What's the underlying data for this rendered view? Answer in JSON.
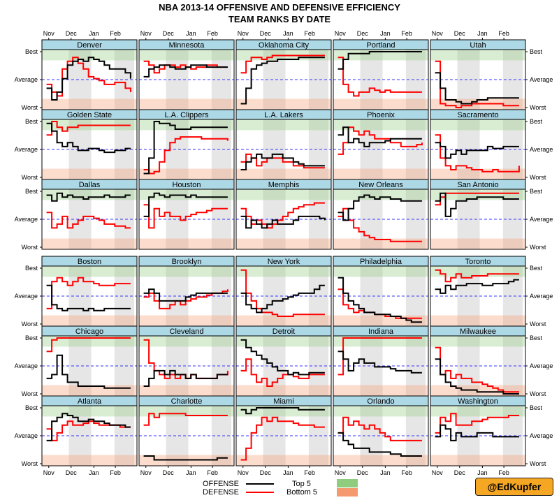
{
  "page": {
    "title_line1": "NBA 2013-14 OFFENSIVE AND DEFENSIVE EFFICIENCY",
    "title_line2": "TEAM RANKS BY DATE"
  },
  "legend": {
    "offense": "OFFENSE",
    "defense": "DEFENSE",
    "top5": "Top 5",
    "bottom5": "Bottom 5"
  },
  "badge": "@EdKupfer",
  "colors": {
    "offense": "#000000",
    "defense": "#ff0000",
    "top5": "#8fcc7e",
    "bottom5": "#f59a6e",
    "strip": "#add8e6",
    "month_shade": "#e6e6e6",
    "average_line": "#3333ff"
  },
  "chart_data": {
    "type": "line",
    "x": [
      "Nov",
      "Dec",
      "Jan",
      "Feb"
    ],
    "y_ticks": [
      "Best",
      "Average",
      "Worst"
    ],
    "ylim": [
      30,
      1
    ],
    "grid": false,
    "legend_position": "bottom",
    "panels": [
      {
        "team": "Denver",
        "offense": [
          20,
          26,
          22,
          15,
          8,
          6,
          5,
          6,
          4,
          5,
          6,
          8,
          10,
          10,
          10,
          12,
          15
        ],
        "defense": [
          18,
          22,
          24,
          10,
          6,
          4,
          7,
          10,
          14,
          15,
          16,
          18,
          18,
          17,
          17,
          20,
          22
        ]
      },
      {
        "team": "Minnesota",
        "offense": [
          14,
          10,
          9,
          8,
          8,
          9,
          10,
          10,
          9,
          8,
          8,
          8,
          9,
          9,
          9,
          9,
          9
        ],
        "defense": [
          6,
          8,
          12,
          10,
          8,
          8,
          9,
          8,
          9,
          10,
          9,
          9,
          8,
          8,
          9,
          9,
          9
        ]
      },
      {
        "team": "Oklahoma City",
        "offense": [
          28,
          20,
          10,
          8,
          7,
          6,
          6,
          5,
          5,
          5,
          5,
          4,
          4,
          4,
          4,
          4,
          4
        ],
        "defense": [
          12,
          6,
          4,
          4,
          5,
          4,
          3,
          3,
          3,
          3,
          3,
          3,
          3,
          3,
          3,
          3,
          3
        ]
      },
      {
        "team": "Portland",
        "offense": [
          10,
          5,
          2,
          2,
          2,
          2,
          1,
          1,
          1,
          1,
          1,
          1,
          1,
          1,
          1,
          1,
          1
        ],
        "defense": [
          4,
          18,
          22,
          24,
          22,
          22,
          20,
          21,
          22,
          21,
          22,
          22,
          22,
          22,
          22,
          22,
          22
        ]
      },
      {
        "team": "Utah",
        "offense": [
          12,
          20,
          26,
          26,
          27,
          28,
          28,
          27,
          26,
          26,
          25,
          25,
          25,
          25,
          25,
          25,
          25
        ],
        "defense": [
          6,
          28,
          29,
          29,
          30,
          29,
          29,
          28,
          28,
          28,
          28,
          28,
          28,
          29,
          29,
          29,
          29
        ]
      },
      {
        "team": "Golden State",
        "offense": [
          2,
          6,
          12,
          14,
          12,
          14,
          16,
          16,
          15,
          15,
          16,
          17,
          17,
          16,
          16,
          15,
          15
        ],
        "defense": [
          8,
          1,
          4,
          6,
          4,
          4,
          3,
          3,
          3,
          3,
          3,
          3,
          3,
          3,
          3,
          3,
          3
        ]
      },
      {
        "team": "L.A. Clippers",
        "offense": [
          28,
          20,
          1,
          2,
          2,
          3,
          5,
          5,
          5,
          4,
          4,
          4,
          4,
          4,
          4,
          4,
          4
        ],
        "defense": [
          26,
          28,
          27,
          22,
          16,
          12,
          10,
          9,
          9,
          9,
          9,
          10,
          10,
          10,
          10,
          10,
          11
        ]
      },
      {
        "team": "L.A. Lakers",
        "offense": [
          26,
          22,
          20,
          18,
          20,
          20,
          18,
          18,
          20,
          20,
          22,
          23,
          24,
          24,
          24,
          24,
          24
        ],
        "defense": [
          22,
          18,
          20,
          24,
          22,
          20,
          20,
          20,
          22,
          22,
          24,
          24,
          25,
          25,
          25,
          25,
          25
        ]
      },
      {
        "team": "Phoenix",
        "offense": [
          8,
          4,
          12,
          10,
          12,
          14,
          12,
          12,
          12,
          11,
          10,
          10,
          10,
          10,
          10,
          10,
          10
        ],
        "defense": [
          18,
          12,
          4,
          6,
          8,
          6,
          8,
          10,
          10,
          10,
          12,
          12,
          14,
          14,
          14,
          13,
          12
        ]
      },
      {
        "team": "Sacramento",
        "offense": [
          12,
          14,
          20,
          18,
          16,
          18,
          16,
          16,
          16,
          16,
          14,
          15,
          15,
          14,
          14,
          14,
          14
        ],
        "defense": [
          8,
          20,
          24,
          26,
          24,
          24,
          25,
          26,
          26,
          27,
          27,
          26,
          27,
          27,
          27,
          27,
          24
        ]
      },
      {
        "team": "Dallas",
        "offense": [
          3,
          6,
          2,
          4,
          3,
          4,
          4,
          5,
          4,
          4,
          4,
          3,
          4,
          4,
          4,
          3,
          3
        ],
        "defense": [
          12,
          20,
          18,
          14,
          20,
          18,
          16,
          14,
          14,
          15,
          16,
          18,
          18,
          19,
          19,
          20,
          20
        ]
      },
      {
        "team": "Houston",
        "offense": [
          14,
          4,
          2,
          3,
          4,
          3,
          3,
          3,
          4,
          3,
          4,
          4,
          4,
          4,
          4,
          4,
          4
        ],
        "defense": [
          8,
          20,
          10,
          14,
          12,
          14,
          14,
          16,
          14,
          13,
          12,
          12,
          11,
          10,
          10,
          10,
          10
        ]
      },
      {
        "team": "Memphis",
        "offense": [
          14,
          20,
          16,
          18,
          20,
          18,
          16,
          18,
          18,
          18,
          16,
          14,
          14,
          14,
          14,
          15,
          16
        ],
        "defense": [
          10,
          14,
          18,
          16,
          18,
          20,
          18,
          16,
          14,
          12,
          10,
          9,
          8,
          8,
          7,
          7,
          7
        ]
      },
      {
        "team": "New Orleans",
        "offense": [
          12,
          16,
          10,
          6,
          4,
          3,
          4,
          5,
          4,
          4,
          5,
          5,
          6,
          6,
          6,
          6,
          6
        ],
        "defense": [
          14,
          10,
          16,
          20,
          22,
          24,
          25,
          26,
          26,
          26,
          27,
          27,
          27,
          27,
          27,
          27,
          27
        ]
      },
      {
        "team": "San Antonio",
        "offense": [
          6,
          2,
          14,
          10,
          6,
          6,
          5,
          5,
          4,
          4,
          4,
          4,
          4,
          5,
          5,
          5,
          5
        ],
        "defense": [
          8,
          4,
          2,
          2,
          2,
          2,
          2,
          2,
          2,
          2,
          2,
          2,
          2,
          2,
          2,
          2,
          2
        ]
      },
      {
        "team": "Boston",
        "offense": [
          10,
          20,
          22,
          23,
          22,
          22,
          22,
          23,
          22,
          23,
          23,
          22,
          22,
          22,
          22,
          22,
          22
        ],
        "defense": [
          22,
          8,
          6,
          8,
          10,
          8,
          6,
          8,
          8,
          9,
          10,
          10,
          10,
          9,
          9,
          9,
          9
        ]
      },
      {
        "team": "Brooklyn",
        "offense": [
          14,
          12,
          14,
          18,
          18,
          18,
          18,
          18,
          16,
          15,
          14,
          14,
          14,
          14,
          14,
          14,
          14
        ],
        "defense": [
          16,
          14,
          18,
          22,
          22,
          20,
          18,
          20,
          18,
          17,
          16,
          16,
          15,
          14,
          14,
          13,
          12
        ]
      },
      {
        "team": "New York",
        "offense": [
          14,
          20,
          22,
          24,
          22,
          20,
          18,
          18,
          17,
          16,
          15,
          14,
          14,
          14,
          12,
          10,
          10
        ],
        "defense": [
          2,
          14,
          18,
          22,
          24,
          24,
          25,
          26,
          26,
          26,
          25,
          25,
          25,
          25,
          25,
          25,
          25
        ]
      },
      {
        "team": "Philadelphia",
        "offense": [
          6,
          14,
          18,
          20,
          22,
          24,
          24,
          25,
          25,
          25,
          26,
          26,
          27,
          28,
          29,
          29,
          29
        ],
        "defense": [
          12,
          20,
          22,
          24,
          23,
          24,
          24,
          25,
          25,
          26,
          26,
          27,
          27,
          27,
          27,
          27,
          27
        ]
      },
      {
        "team": "Toronto",
        "offense": [
          12,
          14,
          10,
          12,
          10,
          10,
          9,
          9,
          9,
          10,
          10,
          9,
          9,
          9,
          8,
          7,
          7
        ],
        "defense": [
          2,
          4,
          8,
          6,
          4,
          6,
          6,
          5,
          5,
          5,
          4,
          4,
          4,
          4,
          4,
          4,
          4
        ]
      },
      {
        "team": "Chicago",
        "offense": [
          22,
          20,
          10,
          20,
          24,
          24,
          26,
          26,
          26,
          26,
          26,
          27,
          27,
          27,
          27,
          27,
          27
        ],
        "defense": [
          8,
          2,
          1,
          1,
          1,
          1,
          1,
          1,
          1,
          1,
          1,
          1,
          1,
          1,
          1,
          1,
          1
        ]
      },
      {
        "team": "Cleveland",
        "offense": [
          26,
          22,
          18,
          18,
          20,
          18,
          20,
          20,
          22,
          20,
          22,
          22,
          22,
          22,
          20,
          20,
          20
        ],
        "defense": [
          2,
          14,
          18,
          20,
          22,
          20,
          22,
          20,
          22,
          20,
          22,
          22,
          22,
          22,
          20,
          20,
          18
        ]
      },
      {
        "team": "Detroit",
        "offense": [
          2,
          6,
          8,
          10,
          12,
          14,
          16,
          18,
          18,
          20,
          19,
          20,
          20,
          19,
          19,
          19,
          19
        ],
        "defense": [
          18,
          12,
          20,
          24,
          22,
          26,
          24,
          22,
          20,
          20,
          21,
          22,
          22,
          20,
          20,
          20,
          20
        ]
      },
      {
        "team": "Indiana",
        "offense": [
          8,
          12,
          18,
          14,
          12,
          14,
          14,
          16,
          16,
          16,
          17,
          18,
          18,
          18,
          19,
          19,
          19
        ],
        "defense": [
          20,
          1,
          1,
          1,
          1,
          1,
          1,
          1,
          1,
          1,
          1,
          1,
          1,
          1,
          1,
          1,
          1
        ]
      },
      {
        "team": "Milwaukee",
        "offense": [
          12,
          20,
          24,
          26,
          27,
          28,
          28,
          28,
          29,
          29,
          29,
          29,
          29,
          30,
          30,
          30,
          30
        ],
        "defense": [
          6,
          20,
          18,
          22,
          20,
          22,
          22,
          24,
          24,
          25,
          26,
          27,
          28,
          29,
          29,
          29,
          29
        ]
      },
      {
        "team": "Atlanta",
        "offense": [
          18,
          8,
          6,
          4,
          5,
          6,
          8,
          8,
          7,
          8,
          8,
          9,
          10,
          10,
          10,
          11,
          11
        ],
        "defense": [
          12,
          18,
          14,
          10,
          8,
          10,
          10,
          9,
          8,
          9,
          10,
          10,
          10,
          10,
          11,
          11,
          11
        ]
      },
      {
        "team": "Charlotte",
        "offense": [
          26,
          26,
          28,
          28,
          28,
          28,
          28,
          28,
          28,
          28,
          28,
          28,
          28,
          28,
          27,
          27,
          27
        ],
        "defense": [
          10,
          4,
          6,
          4,
          4,
          4,
          4,
          4,
          5,
          5,
          5,
          5,
          5,
          5,
          5,
          5,
          5
        ]
      },
      {
        "team": "Miami",
        "offense": [
          2,
          4,
          2,
          1,
          1,
          1,
          1,
          1,
          1,
          1,
          1,
          2,
          2,
          2,
          2,
          2,
          2
        ],
        "defense": [
          28,
          22,
          14,
          10,
          6,
          8,
          6,
          8,
          8,
          8,
          9,
          10,
          10,
          10,
          11,
          11,
          11
        ]
      },
      {
        "team": "Orlando",
        "offense": [
          14,
          18,
          20,
          22,
          22,
          22,
          24,
          24,
          24,
          24,
          25,
          25,
          26,
          26,
          26,
          26,
          26
        ],
        "defense": [
          14,
          6,
          10,
          8,
          10,
          12,
          10,
          12,
          14,
          16,
          18,
          18,
          18,
          18,
          18,
          18,
          18
        ]
      },
      {
        "team": "Washington",
        "offense": [
          16,
          10,
          12,
          18,
          14,
          16,
          16,
          16,
          14,
          14,
          14,
          16,
          16,
          16,
          16,
          16,
          16
        ],
        "defense": [
          14,
          6,
          8,
          4,
          10,
          10,
          10,
          8,
          8,
          7,
          6,
          6,
          6,
          6,
          5,
          5,
          5
        ]
      }
    ]
  }
}
